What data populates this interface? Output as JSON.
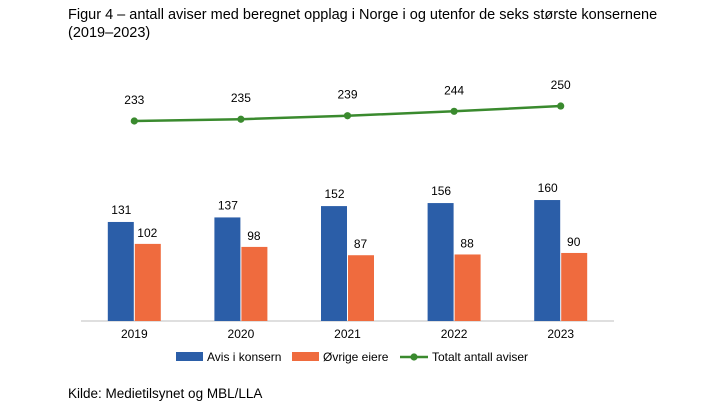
{
  "figure": {
    "title_line1": "Figur 4 – antall aviser med beregnet opplag i Norge i og utenfor de seks største konsernene",
    "title_line2": "(2019–2023)",
    "source": "Kilde: Medietilsynet og MBL/LLA"
  },
  "colors": {
    "blue": "#2b5ea8",
    "orange": "#ef6b3e",
    "green": "#3a8a2e",
    "axis": "#bfbfbf"
  },
  "chart_data": {
    "type": "bar",
    "categories": [
      "2019",
      "2020",
      "2021",
      "2022",
      "2023"
    ],
    "series": [
      {
        "name": "Avis i konsern",
        "type": "bar",
        "values": [
          131,
          137,
          152,
          156,
          160
        ],
        "labels": [
          "131",
          "137",
          "152",
          "156",
          "160"
        ]
      },
      {
        "name": "Øvrige eiere",
        "type": "bar",
        "values": [
          102,
          98,
          87,
          88,
          90
        ],
        "labels": [
          "102",
          "98",
          "87",
          "88",
          "90"
        ]
      },
      {
        "name": "Totalt antall aviser",
        "type": "line",
        "values": [
          233,
          235,
          239,
          244,
          250
        ],
        "labels": [
          "233",
          "235",
          "239",
          "244",
          "250"
        ]
      }
    ],
    "title": "Figur 4 – antall aviser med beregnet opplag i Norge i og utenfor de seks største konsernene (2019–2023)",
    "legend_position": "bottom"
  }
}
